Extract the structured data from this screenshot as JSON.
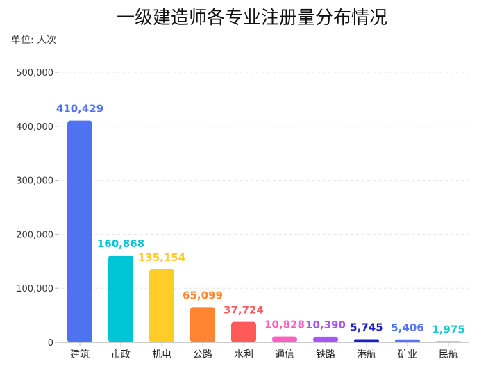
{
  "chart_data": {
    "type": "bar",
    "title": "一级建造师各专业注册量分布情况",
    "unit_label": "单位: 人次",
    "categories": [
      "建筑",
      "市政",
      "机电",
      "公路",
      "水利",
      "通信",
      "铁路",
      "港航",
      "矿业",
      "民航"
    ],
    "values": [
      410429,
      160868,
      135154,
      65099,
      37724,
      10828,
      10390,
      5745,
      5406,
      1975
    ],
    "value_labels": [
      "410,429",
      "160,868",
      "135,154",
      "65,099",
      "37,724",
      "10,828",
      "10,390",
      "5,745",
      "5,406",
      "1,975"
    ],
    "colors": [
      "#4f73f0",
      "#00c5d6",
      "#ffcc29",
      "#ff8533",
      "#ff5a5a",
      "#ff5fbd",
      "#a855f7",
      "#1a1fc9",
      "#5477f0",
      "#19c8d6"
    ],
    "yticks": [
      "0",
      "100,000",
      "200,000",
      "300,000",
      "400,000",
      "500,000"
    ],
    "ylim": [
      0,
      500000
    ],
    "grid": true,
    "legend": "none"
  }
}
